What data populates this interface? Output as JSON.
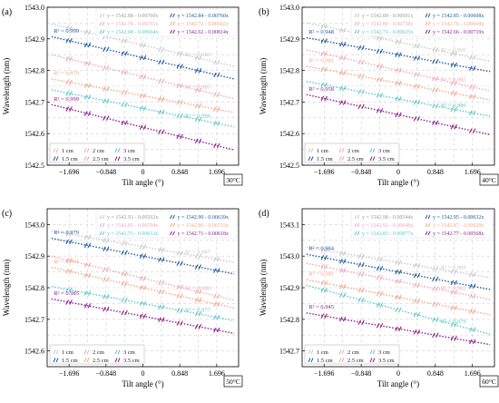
{
  "chart_data": [
    {
      "type": "line",
      "panel_label": "(a)",
      "temp_label": "30°C",
      "xlabel": "Tilt angle (°)",
      "ylabel": "Wavelength (nm)",
      "x": [
        -1.696,
        -1.272,
        -0.848,
        -0.424,
        0,
        0.424,
        0.848,
        1.272,
        1.696
      ],
      "xticks": [
        "-1.696",
        "-0.848",
        "0",
        "0.848",
        "1.696"
      ],
      "yticks": [
        "1542.5",
        "1542.6",
        "1542.7",
        "1542.8",
        "1542.9",
        "1543.0"
      ],
      "ylim": [
        1542.5,
        1543.0
      ],
      "grid": true,
      "equations": [
        "y = 1542.88 - 0.00760x",
        "y = 1542.84 - 0.00760x",
        "y = 1542.78 - 0.00791x",
        "y = 1542.72 - 0.00602x",
        "y = 1542.68 - 0.00664x",
        "y = 1542.62 - 0.00814x"
      ],
      "r2_labels": [
        "R² = 0.989",
        "R² = 0.999",
        "R² = 0.985",
        "R² = 0.979",
        "R² = 0.996",
        "R² = 0.999"
      ],
      "series": [
        {
          "name": "1 cm",
          "color": "#c8c8c8",
          "intercept": 1542.88,
          "slope": -0.0076
        },
        {
          "name": "1.5 cm",
          "color": "#1e5aa0",
          "intercept": 1542.84,
          "slope": -0.0076
        },
        {
          "name": "2 cm",
          "color": "#f0a8b4",
          "intercept": 1542.78,
          "slope": -0.00791
        },
        {
          "name": "2.5 cm",
          "color": "#f4a88a",
          "intercept": 1542.72,
          "slope": -0.00602
        },
        {
          "name": "3 cm",
          "color": "#5cc8c8",
          "intercept": 1542.68,
          "slope": -0.00664
        },
        {
          "name": "3.5 cm",
          "color": "#8c1e8c",
          "intercept": 1542.62,
          "slope": -0.00814
        }
      ]
    },
    {
      "type": "line",
      "panel_label": "(b)",
      "temp_label": "40°C",
      "xlabel": "Tilt angle (°)",
      "ylabel": "Wavelength (nm)",
      "x": [
        -1.696,
        -1.272,
        -0.848,
        -0.424,
        0,
        0.424,
        0.848,
        1.272,
        1.696
      ],
      "xticks": [
        "-1.696",
        "-0.848",
        "0",
        "0.848",
        "1.696"
      ],
      "yticks": [
        "1542.5",
        "1542.6",
        "1542.7",
        "1542.8",
        "1542.9",
        "1543.0"
      ],
      "ylim": [
        1542.5,
        1543.0
      ],
      "grid": true,
      "equations": [
        "y = 1542.89 - 0.00691x",
        "y = 1542.85 - 0.00608x",
        "y = 1542.80 - 0.00738x",
        "y = 1542.76 - 0.00604x",
        "y = 1542.71 - 0.00625x",
        "y = 1542.66 - 0.00719x"
      ],
      "r2_labels": [
        "R² = 0.990",
        "R² = 0.948",
        "R² = 0.985",
        "R² = 0.981",
        "R² = 0.980",
        "R² = 0.958"
      ],
      "series": [
        {
          "name": "1 cm",
          "color": "#c8c8c8",
          "intercept": 1542.89,
          "slope": -0.00691
        },
        {
          "name": "1.5 cm",
          "color": "#1e5aa0",
          "intercept": 1542.85,
          "slope": -0.00608
        },
        {
          "name": "2 cm",
          "color": "#f0a8b4",
          "intercept": 1542.8,
          "slope": -0.00738
        },
        {
          "name": "2.5 cm",
          "color": "#f4a88a",
          "intercept": 1542.76,
          "slope": -0.00604
        },
        {
          "name": "3 cm",
          "color": "#5cc8c8",
          "intercept": 1542.71,
          "slope": -0.00625
        },
        {
          "name": "3.5 cm",
          "color": "#8c1e8c",
          "intercept": 1542.66,
          "slope": -0.00719
        }
      ]
    },
    {
      "type": "line",
      "panel_label": "(c)",
      "temp_label": "50°C",
      "xlabel": "Tilt angle (°)",
      "ylabel": "Wavelength (nm)",
      "x": [
        -1.696,
        -1.272,
        -0.848,
        -0.424,
        0,
        0.424,
        0.848,
        1.272,
        1.696
      ],
      "xticks": [
        "-1.696",
        "-0.848",
        "0",
        "0.848",
        "1.696"
      ],
      "yticks": [
        "1542.6",
        "1542.7",
        "1542.8",
        "1542.9",
        "1543.0"
      ],
      "ylim": [
        1542.55,
        1543.05
      ],
      "grid": true,
      "equations": [
        "y = 1542.93 - 0.00562x",
        "y = 1542.90 - 0.00639x",
        "y = 1542.83 - 0.00794x",
        "y = 1542.80 - 0.00733x",
        "y = 1542.75 - 0.00612x",
        "y = 1542.71 - 0.00618x"
      ],
      "r2_labels": [
        "R² = 0.987",
        "R² = 0.979",
        "R² = 0.980",
        "R² = 0.991",
        "R² = 0.977",
        "R² = 0.985"
      ],
      "series": [
        {
          "name": "1 cm",
          "color": "#c8c8c8",
          "intercept": 1542.93,
          "slope": -0.00562
        },
        {
          "name": "1.5 cm",
          "color": "#1e5aa0",
          "intercept": 1542.9,
          "slope": -0.00639
        },
        {
          "name": "2 cm",
          "color": "#f0a8b4",
          "intercept": 1542.83,
          "slope": -0.00794
        },
        {
          "name": "2.5 cm",
          "color": "#f4a88a",
          "intercept": 1542.8,
          "slope": -0.00733
        },
        {
          "name": "3 cm",
          "color": "#5cc8c8",
          "intercept": 1542.75,
          "slope": -0.00612
        },
        {
          "name": "3.5 cm",
          "color": "#8c1e8c",
          "intercept": 1542.71,
          "slope": -0.00618
        }
      ]
    },
    {
      "type": "line",
      "panel_label": "(d)",
      "temp_label": "60°C",
      "xlabel": "Tilt angle (°)",
      "ylabel": "Wavelength (nm)",
      "x": [
        -1.696,
        -1.272,
        -0.848,
        -0.424,
        0,
        0.424,
        0.848,
        1.272,
        1.696
      ],
      "xticks": [
        "-1.696",
        "-0.848",
        "0",
        "0.848",
        "1.696"
      ],
      "yticks": [
        "1542.7",
        "1542.8",
        "1542.9",
        "1543.0",
        "1543.1"
      ],
      "ylim": [
        1542.65,
        1543.15
      ],
      "grid": true,
      "equations": [
        "y = 1542.98 - 0.00544x",
        "y = 1542.95 - 0.00632x",
        "y = 1542.92 - 0.00648x",
        "y = 1542.87 - 0.00629x",
        "y = 1542.83 - 0.00877x",
        "y = 1542.77 - 0.00568x"
      ],
      "r2_labels": [
        "R² = 0.989",
        "R² = 0.984",
        "R² = 0.962",
        "R² = 0.981",
        "R² = 0.979",
        "R² = 0.945"
      ],
      "series": [
        {
          "name": "1 cm",
          "color": "#c8c8c8",
          "intercept": 1542.98,
          "slope": -0.00544
        },
        {
          "name": "1.5 cm",
          "color": "#1e5aa0",
          "intercept": 1542.95,
          "slope": -0.00632
        },
        {
          "name": "2 cm",
          "color": "#f0a8b4",
          "intercept": 1542.92,
          "slope": -0.00648
        },
        {
          "name": "2.5 cm",
          "color": "#f4a88a",
          "intercept": 1542.87,
          "slope": -0.00629
        },
        {
          "name": "3 cm",
          "color": "#5cc8c8",
          "intercept": 1542.83,
          "slope": -0.00877
        },
        {
          "name": "3.5 cm",
          "color": "#8c1e8c",
          "intercept": 1542.77,
          "slope": -0.00568
        }
      ]
    }
  ]
}
